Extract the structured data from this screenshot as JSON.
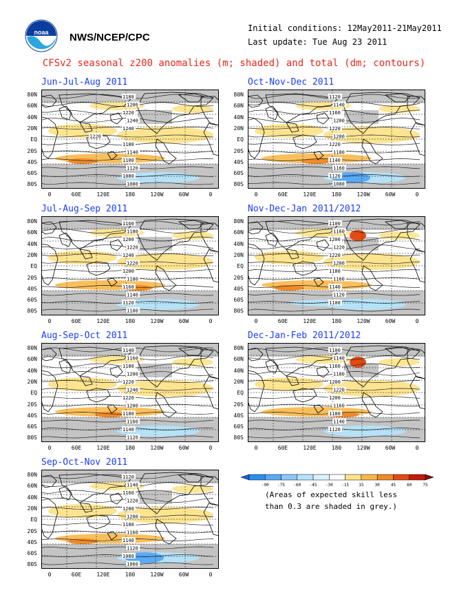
{
  "header": {
    "agency": "NWS/NCEP/CPC",
    "logo_text": "noaa",
    "initial_conditions": "Initial conditions: 12May2011-21May2011",
    "last_update": "Last update: Tue Aug 23 2011",
    "title": "CFSv2 seasonal z200 anomalies (m; shaded) and total (dm; contours)"
  },
  "axes": {
    "lat_labels": [
      "80N",
      "60N",
      "40N",
      "20N",
      "EQ",
      "20S",
      "40S",
      "60S",
      "80S"
    ],
    "lon_labels": [
      "0",
      "60E",
      "120E",
      "180",
      "120W",
      "60W",
      "0"
    ]
  },
  "colors": {
    "title_red": "#e8261c",
    "panel_title_blue": "#1a3cff",
    "grey_low_skill": "#c4c4c4"
  },
  "chart_data": [
    {
      "type": "heatmap",
      "title": "Jun-Jul-Aug 2011",
      "contour_labels": [
        "1180",
        "1200",
        "1220",
        "1240",
        "1240",
        "1220",
        "1180",
        "1140",
        "1100",
        "1120",
        "1080",
        "1080"
      ]
    },
    {
      "type": "heatmap",
      "title": "Oct-Nov-Dec 2011",
      "contour_labels": [
        "1120",
        "1140",
        "1160",
        "1200",
        "1220",
        "1200",
        "1220",
        "1180",
        "1140",
        "1160",
        "1120",
        "1080"
      ]
    },
    {
      "type": "heatmap",
      "title": "Jul-Aug-Sep 2011",
      "contour_labels": [
        "1160",
        "1180",
        "1200",
        "1220",
        "1240",
        "1220",
        "1200",
        "1180",
        "1160",
        "1140",
        "1120",
        "1100"
      ]
    },
    {
      "type": "heatmap",
      "title": "Nov-Dec-Jan 2011/2012",
      "contour_labels": [
        "1100",
        "1160",
        "1200",
        "1220",
        "1220",
        "1200",
        "1180",
        "1160",
        "1140",
        "1120",
        "1100"
      ]
    },
    {
      "type": "heatmap",
      "title": "Aug-Sep-Oct 2011",
      "contour_labels": [
        "1140",
        "1160",
        "1180",
        "1200",
        "1220",
        "1240",
        "1220",
        "1200",
        "1180",
        "1160",
        "1140",
        "1120"
      ]
    },
    {
      "type": "heatmap",
      "title": "Dec-Jan-Feb 2011/2012",
      "contour_labels": [
        "1100",
        "1140",
        "1160",
        "1180",
        "1200",
        "1220",
        "1200",
        "1160",
        "1180",
        "1140",
        "1120"
      ]
    },
    {
      "type": "heatmap",
      "title": "Sep-Oct-Nov 2011",
      "contour_labels": [
        "1120",
        "1140",
        "1160",
        "1220",
        "1200",
        "1200",
        "1180",
        "1160",
        "1140",
        "1120",
        "1080",
        "1060"
      ]
    }
  ],
  "colorbar": {
    "levels": [
      "-90",
      "-75",
      "-60",
      "-45",
      "-30",
      "-15",
      "15",
      "30",
      "45",
      "60",
      "75",
      "90"
    ],
    "colors": [
      "#1560d8",
      "#2b8ef0",
      "#5aaaf5",
      "#8cc8fa",
      "#b5e4fc",
      "#d9f2fd",
      "#ffffff",
      "#fde38a",
      "#f8b84a",
      "#f08a28",
      "#e04c14",
      "#c41a0a",
      "#8a0a04"
    ]
  },
  "note": {
    "line1": "(Areas of expected skill less",
    "line2": "than 0.3 are shaded in grey.)"
  }
}
